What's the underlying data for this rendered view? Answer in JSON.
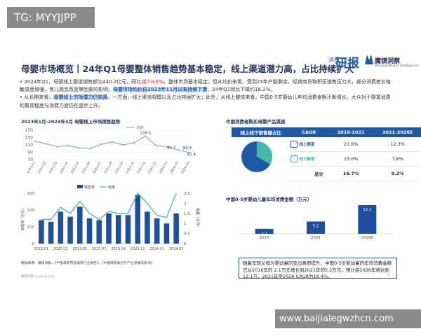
{
  "watermark_top": "TG: MYYJJPP",
  "watermark_bottom": "www.baijialegwzhcn.com",
  "title": "母婴市场概览丨24年Q1母婴整体销售趋势基本稳定，线上渠道潜力高，占比持续扩大",
  "logo1": "研报",
  "logo1_small": "消费",
  "logo2": "魔镜洞察",
  "logo2_sub": "Moojing Market Intelligence",
  "bullets": {
    "b1_a": "2024年Q1，母婴线上渠道销售额为440.2亿元，同比",
    "b1_red": "减少0.6%",
    "b1_b": "，整体市场基本稳定；但从均价来看，受到23年产能剩余，经销商货物积压销售压力大，部分消费者价格敏感度增强、育儿观念改变等因素的影响，",
    "b1_hl": "母婴市场均价自2023年11月以来持续下滑",
    "b1_c": "，24年Q1同比下降约18.2%。",
    "b2_a": "从长期来看，",
    "b2_hl": "母婴线上市场潜力仍较高",
    "b2_b": "。一方面，线上渠道规模以及占比持续扩大；此外，从线上整体来看，中国0-5岁婴幼儿年均消费金额不断增长，大众对于婴童消费的重视程度与消费力度仍在逐步上升。"
  },
  "left_chart_title": "2023年1月-2024年3月 母婴线上市场销售趋势",
  "price_chart": {
    "legend": "均价",
    "y_ticks": [
      "150",
      "130",
      "110",
      "90",
      "70"
    ],
    "labels": [
      "134.0",
      "95.7",
      "89.4",
      "82.4"
    ],
    "x_labels": [
      "2023.01",
      "2023.02",
      "2023.03",
      "2023.04",
      "2023.05",
      "2023.06",
      "2023.07",
      "2023.08",
      "2023.09",
      "2023.10",
      "2023.11",
      "2023.12",
      "2024.01",
      "2024.02",
      "2024.03"
    ]
  },
  "sales_chart": {
    "legend_bar": "销售额",
    "legend_line": "销量",
    "y_left_title": "销售额（亿元）",
    "y_right_title": "销量（亿件）",
    "y_left_ticks": [
      "300",
      "200",
      "100",
      "0"
    ],
    "y_right_ticks": [
      "2.5",
      "2",
      "1.5",
      "1",
      "0.5",
      "0"
    ],
    "x_labels": [
      "2023.01",
      "2023.03",
      "2023.05",
      "2023.07",
      "2023.09",
      "2023.11",
      "2024.01",
      "2024.03"
    ]
  },
  "source_text": "数据来源：魔镜洞察，《中国母婴用品电商行业报告》，《中国母婴童出行产业发展白皮书》",
  "footer_text": "魔镜洞察 moojing.com",
  "page_number": "6",
  "right_top_title": "中国消费者购买母婴产品渠道",
  "cagr_table": {
    "headers": [
      "线上线下销售额占比",
      "CAGR",
      "2016-2021",
      "2021-2026E"
    ],
    "rows": [
      {
        "label": "线上渠道",
        "a": "21.6%",
        "b": "12.3%"
      },
      {
        "label": "线下渠道",
        "a": "15.0%",
        "b": "7.8%"
      },
      {
        "label": "总计",
        "a": "16.7%",
        "b": "9.2%"
      }
    ],
    "pie_online_share": 0.33
  },
  "spend_chart_title": "中国0-5岁婴幼儿童年均消费金额（万元）",
  "note": "随着年轻父母为婴幼童的支出意愿提升，中国0-5岁婴幼童的年均消费金额已从2016年的 2.1万元增长到2021年的5.2万元，预计在2026年将达到12.1万，2021年至2026 CAGR为18.4%。",
  "chart_data": [
    {
      "type": "line",
      "title": "2023年1月-2024年3月 母婴线上市场销售趋势",
      "series": [
        {
          "name": "均价",
          "values": [
            120,
            113,
            105,
            108,
            102,
            100,
            112,
            118,
            110,
            116,
            134,
            108,
            105,
            95.7,
            89.4
          ]
        }
      ],
      "categories": [
        "2023.01",
        "2023.02",
        "2023.03",
        "2023.04",
        "2023.05",
        "2023.06",
        "2023.07",
        "2023.08",
        "2023.09",
        "2023.10",
        "2023.11",
        "2023.12",
        "2024.01",
        "2024.02",
        "2024.03"
      ],
      "ylim": [
        70,
        150
      ]
    },
    {
      "type": "bar",
      "series": [
        {
          "name": "销售额",
          "values": [
            140,
            130,
            190,
            160,
            220,
            150,
            140,
            180,
            170,
            170,
            290,
            190,
            150,
            120,
            180
          ]
        },
        {
          "name": "销量",
          "values": [
            1.2,
            1.2,
            1.8,
            1.5,
            2.1,
            1.5,
            1.2,
            1.6,
            1.5,
            1.5,
            2.5,
            2.0,
            1.4,
            1.3,
            2.5
          ]
        }
      ],
      "categories": [
        "2023.01",
        "2023.02",
        "2023.03",
        "2023.04",
        "2023.05",
        "2023.06",
        "2023.07",
        "2023.08",
        "2023.09",
        "2023.10",
        "2023.11",
        "2023.12",
        "2024.01",
        "2024.02",
        "2024.03"
      ],
      "ylim": [
        0,
        300
      ]
    },
    {
      "type": "bar",
      "title": "中国0-5岁婴幼儿童年均消费金额（万元）",
      "categories": [
        "2016",
        "2021",
        "2026E"
      ],
      "values": [
        2.1,
        5.2,
        12.1
      ],
      "ylim": [
        0,
        13
      ]
    }
  ]
}
